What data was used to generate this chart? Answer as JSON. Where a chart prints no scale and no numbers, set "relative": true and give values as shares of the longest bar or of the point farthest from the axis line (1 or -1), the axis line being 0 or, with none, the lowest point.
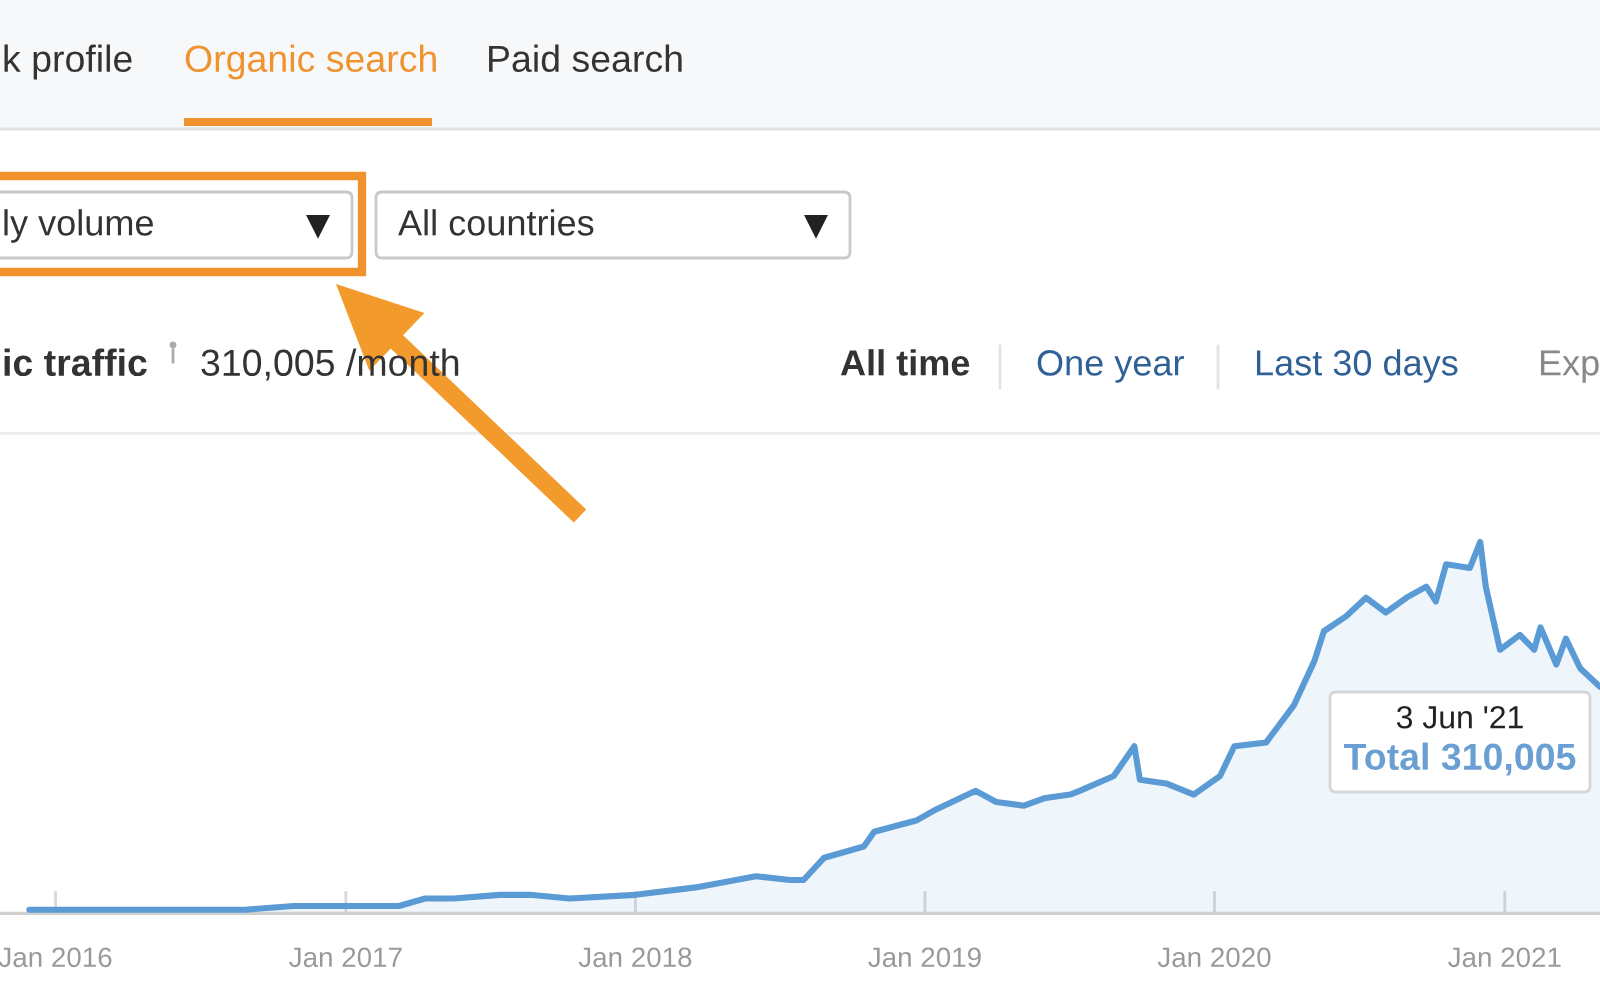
{
  "chart_data": {
    "type": "area",
    "title": "ic traffic",
    "subtitle": "310,005 /month",
    "annotations": [
      "k profile",
      "Organic search",
      "Paid search",
      "ly volume",
      "All countries",
      "All time",
      "One year",
      "Last 30 days",
      "Exp",
      "3 Jun '21",
      "Total 310,005"
    ],
    "relative": true,
    "x": [
      "2015-11-29",
      "2016-02-25",
      "2016-06-30",
      "2016-08-27",
      "2016-10-27",
      "2017-03-09",
      "2017-04-11",
      "2017-05-17",
      "2017-07-14",
      "2017-08-21",
      "2017-10-10",
      "2018-01-01",
      "2018-03-18",
      "2018-06-02",
      "2018-07-15",
      "2018-08-01",
      "2018-08-27",
      "2018-10-16",
      "2018-10-29",
      "2018-12-21",
      "2019-01-15",
      "2019-03-06",
      "2019-04-01",
      "2019-05-06",
      "2019-05-31",
      "2019-07-03",
      "2019-07-15",
      "2019-08-27",
      "2019-09-22",
      "2019-09-29",
      "2019-11-01",
      "2019-12-06",
      "2020-01-08",
      "2020-01-26",
      "2020-03-06",
      "2020-04-10",
      "2020-05-06",
      "2020-05-18",
      "2020-06-15",
      "2020-07-10",
      "2020-08-04",
      "2020-08-30",
      "2020-09-24",
      "2020-10-06",
      "2020-10-19",
      "2020-11-18",
      "2020-12-01",
      "2020-12-08",
      "2020-12-26",
      "2021-01-20",
      "2021-02-07",
      "2021-02-15",
      "2021-03-07",
      "2021-03-19",
      "2021-04-06",
      "2021-05-01"
    ],
    "series": [
      {
        "color": "#5b9bd5",
        "values": [
          0.01,
          0.01,
          0.01,
          0.01,
          0.02,
          0.02,
          0.04,
          0.04,
          0.05,
          0.05,
          0.04,
          0.05,
          0.07,
          0.1,
          0.09,
          0.09,
          0.15,
          0.18,
          0.22,
          0.25,
          0.28,
          0.33,
          0.3,
          0.29,
          0.31,
          0.32,
          0.33,
          0.37,
          0.45,
          0.36,
          0.35,
          0.32,
          0.37,
          0.45,
          0.46,
          0.56,
          0.68,
          0.76,
          0.8,
          0.85,
          0.81,
          0.85,
          0.88,
          0.84,
          0.94,
          0.93,
          1.0,
          0.88,
          0.71,
          0.75,
          0.71,
          0.77,
          0.67,
          0.74,
          0.66,
          0.61
        ]
      }
    ],
    "xlim": [
      "2015-10-23",
      "2021-05-01"
    ],
    "xticks": [
      {
        "value": "2016-01-01",
        "label": "Jan 2016"
      },
      {
        "value": "2017-01-01",
        "label": "Jan 2017"
      },
      {
        "value": "2018-01-01",
        "label": "Jan 2018"
      },
      {
        "value": "2019-01-01",
        "label": "Jan 2019"
      },
      {
        "value": "2020-01-01",
        "label": "Jan 2020"
      },
      {
        "value": "2021-01-01",
        "label": "Jan 2021"
      }
    ],
    "tick_labels": "x"
  }
}
